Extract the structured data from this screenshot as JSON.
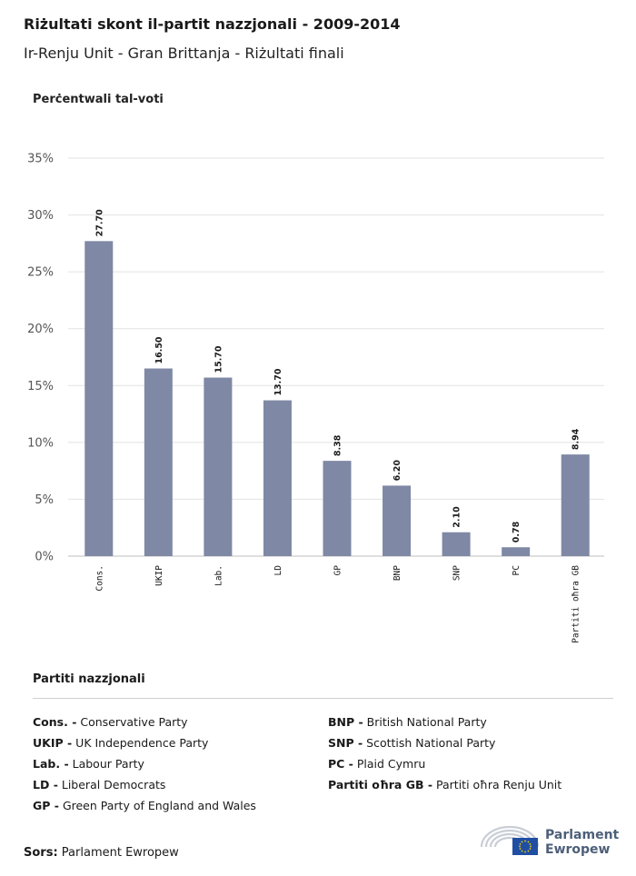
{
  "header": {
    "title": "Riżultati skont il-partit nazzjonali - 2009-2014",
    "subtitle": "Ir-Renju Unit - Gran Brittanja - Riżultati finali"
  },
  "chart_data": {
    "type": "bar",
    "ylabel": "Perċentwali tal-voti",
    "ylim": [
      0,
      35
    ],
    "yticks": [
      "0%",
      "5%",
      "10%",
      "15%",
      "20%",
      "25%",
      "30%",
      "35%"
    ],
    "categories": [
      "Cons.",
      "UKIP",
      "Lab.",
      "LD",
      "GP",
      "BNP",
      "SNP",
      "PC",
      "Partiti oħra GB"
    ],
    "values": [
      27.7,
      16.5,
      15.7,
      13.7,
      8.38,
      6.2,
      2.1,
      0.78,
      8.94
    ],
    "value_labels": [
      "27.70",
      "16.50",
      "15.70",
      "13.70",
      "8.38",
      "6.20",
      "2.10",
      "0.78",
      "8.94"
    ],
    "bar_color": "#7f88a4",
    "grid": true
  },
  "legend": {
    "title": "Partiti nazzjonali",
    "left": [
      {
        "abbr": "Cons. -",
        "name": "Conservative Party"
      },
      {
        "abbr": "UKIP -",
        "name": "UK Independence Party"
      },
      {
        "abbr": "Lab. -",
        "name": "Labour Party"
      },
      {
        "abbr": "LD -",
        "name": "Liberal Democrats"
      },
      {
        "abbr": "GP -",
        "name": "Green Party of England and Wales"
      }
    ],
    "right": [
      {
        "abbr": "BNP -",
        "name": "British National Party"
      },
      {
        "abbr": "SNP -",
        "name": "Scottish National Party"
      },
      {
        "abbr": "PC -",
        "name": "Plaid Cymru"
      },
      {
        "abbr": "Partiti oħra GB -",
        "name": "Partiti oħra Renju Unit"
      }
    ]
  },
  "footer": {
    "source_label": "Sors:",
    "source_text": "Parlament Ewropew",
    "logo_line1": "Parlament",
    "logo_line2": "Ewropew"
  }
}
